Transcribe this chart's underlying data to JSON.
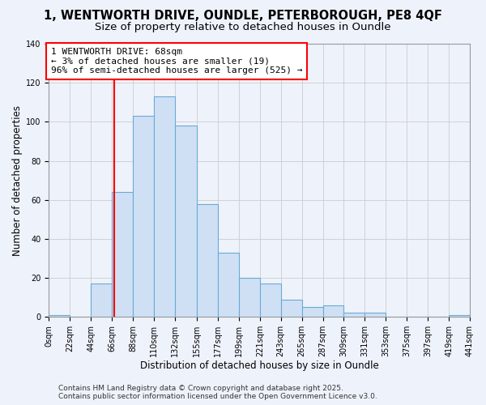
{
  "title": "1, WENTWORTH DRIVE, OUNDLE, PETERBOROUGH, PE8 4QF",
  "subtitle": "Size of property relative to detached houses in Oundle",
  "xlabel": "Distribution of detached houses by size in Oundle",
  "ylabel": "Number of detached properties",
  "bin_edges": [
    0,
    22,
    44,
    66,
    88,
    110,
    132,
    155,
    177,
    199,
    221,
    243,
    265,
    287,
    309,
    331,
    353,
    375,
    397,
    419,
    441
  ],
  "bin_labels": [
    "0sqm",
    "22sqm",
    "44sqm",
    "66sqm",
    "88sqm",
    "110sqm",
    "132sqm",
    "155sqm",
    "177sqm",
    "199sqm",
    "221sqm",
    "243sqm",
    "265sqm",
    "287sqm",
    "309sqm",
    "331sqm",
    "353sqm",
    "375sqm",
    "397sqm",
    "419sqm",
    "441sqm"
  ],
  "bar_heights": [
    1,
    0,
    17,
    64,
    103,
    113,
    98,
    58,
    33,
    20,
    17,
    9,
    5,
    6,
    2,
    2,
    0,
    0,
    0,
    1
  ],
  "bar_color": "#cfe0f5",
  "bar_edge_color": "#6aaad4",
  "vline_x": 68,
  "vline_color": "red",
  "annotation_line1": "1 WENTWORTH DRIVE: 68sqm",
  "annotation_line2": "← 3% of detached houses are smaller (19)",
  "annotation_line3": "96% of semi-detached houses are larger (525) →",
  "annotation_box_color": "white",
  "annotation_box_edge_color": "red",
  "ylim": [
    0,
    140
  ],
  "yticks": [
    0,
    20,
    40,
    60,
    80,
    100,
    120,
    140
  ],
  "grid_color": "#cccccc",
  "background_color": "#eef2fb",
  "plot_bg_color": "#eef2fb",
  "footer1": "Contains HM Land Registry data © Crown copyright and database right 2025.",
  "footer2": "Contains public sector information licensed under the Open Government Licence v3.0.",
  "title_fontsize": 10.5,
  "subtitle_fontsize": 9.5,
  "axis_label_fontsize": 8.5,
  "tick_fontsize": 7,
  "annotation_fontsize": 8,
  "footer_fontsize": 6.5
}
